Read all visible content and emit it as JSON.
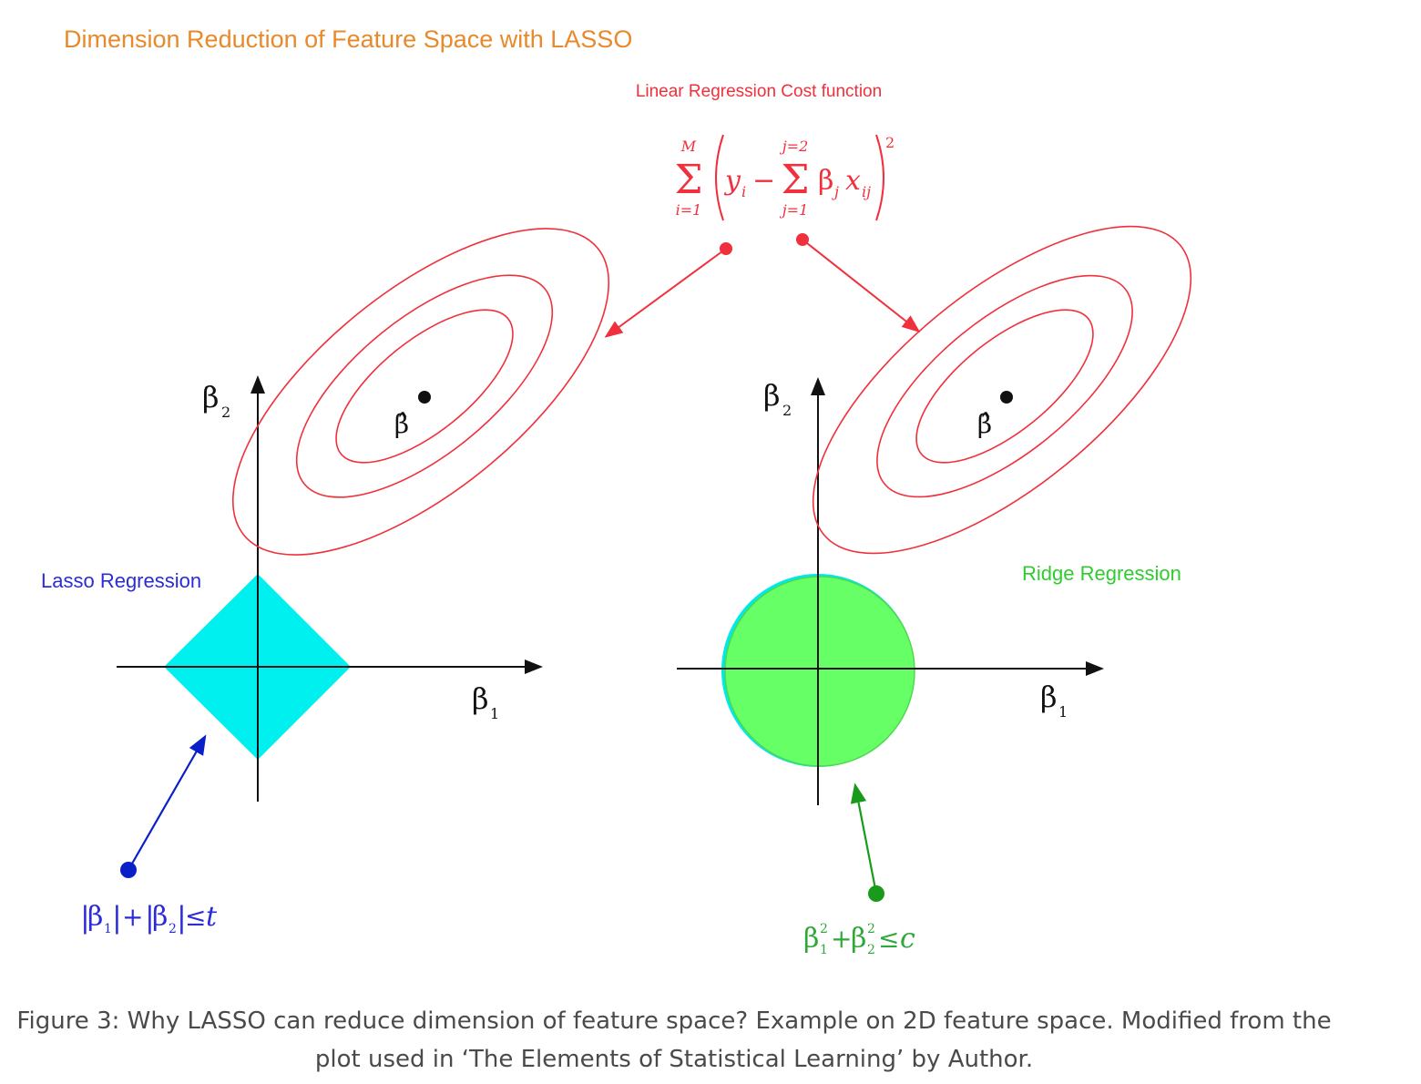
{
  "title": "Dimension Reduction of Feature Space with LASSO",
  "cost_function": {
    "label": "Linear Regression Cost function",
    "formula": {
      "sum_upper": "M",
      "sum_lower": "i=1",
      "y_term": "y",
      "y_sub": "i",
      "minus": "−",
      "inner_sum_upper": "j=2",
      "inner_sum_lower": "j=1",
      "beta": "β",
      "beta_sub": "j",
      "x_term": "x",
      "x_sub": "ij",
      "exponent": "2",
      "sigma": "Σ"
    }
  },
  "lasso": {
    "label": "Lasso Regression",
    "axis_y": "β",
    "axis_y_sub": "2",
    "axis_x": "β",
    "axis_x_sub": "1",
    "beta_hat": "β̂",
    "constraint": {
      "bar": "|",
      "b": "β",
      "sub1": "1",
      "sub2": "2",
      "plus": "+",
      "le": "≤",
      "t": "t"
    }
  },
  "ridge": {
    "label": "Ridge Regression",
    "axis_y": "β",
    "axis_y_sub": "2",
    "axis_x": "β",
    "axis_x_sub": "1",
    "beta_hat": "β̂",
    "constraint": {
      "b": "β",
      "sub1": "1",
      "sub2": "2",
      "sup": "2",
      "plus": "+",
      "le": "≤",
      "c": "c"
    }
  },
  "colors": {
    "title": "#e8892b",
    "cost": "#f0303c",
    "lasso_label": "#2b2bd9",
    "lasso_fill": "#00f0f0",
    "lasso_arrow": "#0a1fc8",
    "ridge_label": "#2fcc2f",
    "ridge_fill": "#66ff66",
    "ridge_arrow": "#1a9a1a",
    "axes": "#111111",
    "caption": "#4a4a4a"
  },
  "caption": {
    "line1": "Figure 3: Why LASSO can reduce dimension of feature space? Example on 2D feature space. Modified from the",
    "line2": "plot used in ‘The Elements of Statistical Learning’ by Author."
  }
}
